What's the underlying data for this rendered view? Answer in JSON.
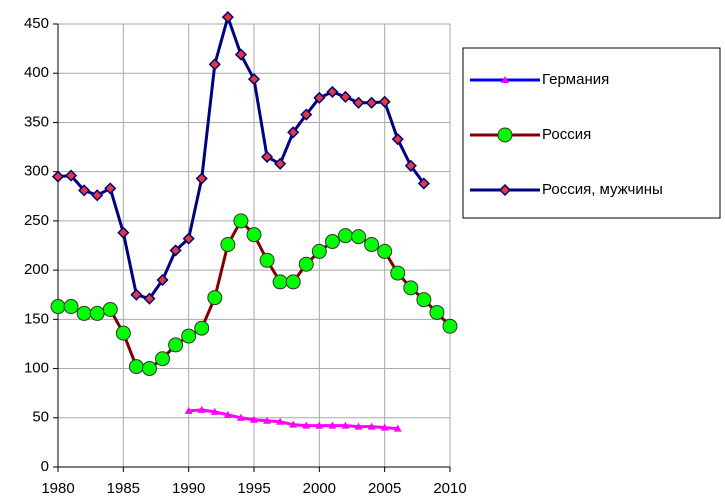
{
  "chart_data": {
    "type": "line",
    "x": [
      1980,
      1981,
      1982,
      1983,
      1984,
      1985,
      1986,
      1987,
      1988,
      1989,
      1990,
      1991,
      1992,
      1993,
      1994,
      1995,
      1996,
      1997,
      1998,
      1999,
      2000,
      2001,
      2002,
      2003,
      2004,
      2005,
      2006,
      2007,
      2008,
      2009,
      2010
    ],
    "series": [
      {
        "name": "Германия",
        "color": "#ff00ff",
        "values": [
          null,
          null,
          null,
          null,
          null,
          null,
          null,
          null,
          null,
          null,
          57,
          58,
          56,
          53,
          50,
          48,
          47,
          46,
          43,
          42,
          42,
          42,
          42,
          41,
          41,
          40,
          39,
          null,
          null,
          null,
          null
        ]
      },
      {
        "name": "Россия",
        "color": "#800000",
        "values": [
          163,
          163,
          156,
          156,
          160,
          136,
          102,
          100,
          110,
          124,
          133,
          141,
          172,
          226,
          250,
          236,
          210,
          188,
          188,
          206,
          219,
          229,
          235,
          234,
          226,
          219,
          197,
          182,
          170,
          157,
          143
        ]
      },
      {
        "name": "Россия, мужчины",
        "color": "#000080",
        "values": [
          295,
          296,
          281,
          276,
          283,
          238,
          175,
          171,
          190,
          220,
          232,
          293,
          409,
          457,
          419,
          394,
          315,
          308,
          340,
          358,
          375,
          381,
          376,
          370,
          370,
          371,
          333,
          306,
          288,
          null,
          null
        ]
      }
    ],
    "xlim": [
      1980,
      2010
    ],
    "xticks": [
      1980,
      1985,
      1990,
      1995,
      2000,
      2005,
      2010
    ],
    "ylim": [
      0,
      450
    ],
    "yticks": [
      0,
      50,
      100,
      150,
      200,
      250,
      300,
      350,
      400,
      450
    ],
    "grid": true,
    "legend": "right"
  }
}
